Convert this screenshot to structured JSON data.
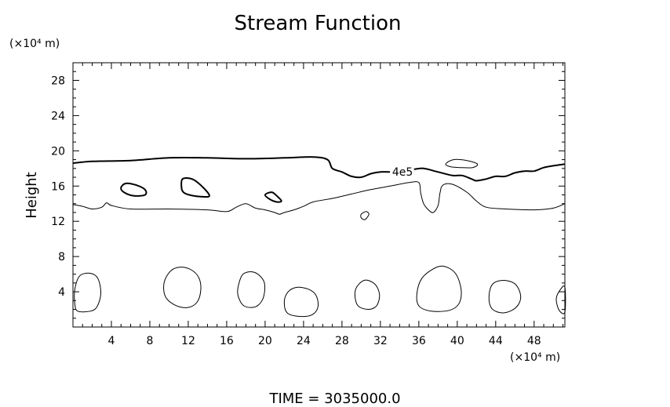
{
  "chart_data": {
    "type": "contour",
    "title": "Stream Function",
    "ylabel": "Height",
    "y_unit": "(×10⁴ m)",
    "x_unit": "(×10⁴ m)",
    "xlim": [
      0,
      51.2
    ],
    "ylim": [
      0,
      30
    ],
    "x_ticks": [
      4,
      8,
      12,
      16,
      20,
      24,
      28,
      32,
      36,
      40,
      44,
      48
    ],
    "y_ticks": [
      4,
      8,
      12,
      16,
      20,
      24,
      28
    ],
    "contour_label": "4e5",
    "footer": "TIME  =  3035000.0",
    "contours": [
      {
        "name": "upper",
        "width": 2,
        "closed": false,
        "points": [
          [
            0,
            18.6
          ],
          [
            2,
            18.8
          ],
          [
            6,
            18.9
          ],
          [
            10,
            19.2
          ],
          [
            14,
            19.2
          ],
          [
            18,
            19.1
          ],
          [
            22,
            19.2
          ],
          [
            25,
            19.3
          ],
          [
            26.5,
            19.0
          ],
          [
            27,
            18.0
          ],
          [
            28,
            17.6
          ],
          [
            29,
            17.1
          ],
          [
            30,
            17.0
          ],
          [
            31,
            17.4
          ],
          [
            32,
            17.6
          ],
          [
            33,
            17.6
          ]
        ]
      },
      {
        "name": "upper-right",
        "width": 2,
        "closed": false,
        "points": [
          [
            35.5,
            17.9
          ],
          [
            36.5,
            18.0
          ],
          [
            38,
            17.6
          ],
          [
            39.5,
            17.2
          ],
          [
            40.5,
            17.2
          ],
          [
            41.5,
            16.8
          ],
          [
            42,
            16.6
          ],
          [
            43,
            16.8
          ],
          [
            44,
            17.1
          ],
          [
            45,
            17.1
          ],
          [
            46,
            17.5
          ],
          [
            47,
            17.7
          ],
          [
            48,
            17.7
          ],
          [
            49,
            18.1
          ],
          [
            50,
            18.3
          ],
          [
            51.2,
            18.5
          ]
        ]
      },
      {
        "name": "lower",
        "width": 1,
        "closed": false,
        "points": [
          [
            0,
            13.9
          ],
          [
            1,
            13.7
          ],
          [
            2,
            13.4
          ],
          [
            3,
            13.6
          ],
          [
            3.5,
            14.1
          ],
          [
            4,
            13.8
          ],
          [
            6,
            13.4
          ],
          [
            10,
            13.4
          ],
          [
            14,
            13.3
          ],
          [
            16,
            13.1
          ],
          [
            17,
            13.6
          ],
          [
            18,
            14.0
          ],
          [
            19,
            13.5
          ],
          [
            20,
            13.3
          ],
          [
            21,
            13.0
          ],
          [
            21.5,
            12.8
          ],
          [
            22,
            13.0
          ],
          [
            23,
            13.3
          ],
          [
            24,
            13.7
          ],
          [
            25,
            14.2
          ],
          [
            27,
            14.6
          ],
          [
            29,
            15.1
          ],
          [
            31,
            15.6
          ],
          [
            33,
            16.0
          ],
          [
            35,
            16.4
          ],
          [
            36,
            16.4
          ],
          [
            36.2,
            15.2
          ],
          [
            36.5,
            14.0
          ],
          [
            37,
            13.3
          ],
          [
            37.5,
            13.0
          ],
          [
            38,
            13.8
          ],
          [
            38.2,
            15.2
          ],
          [
            38.5,
            16.1
          ],
          [
            39.5,
            16.2
          ],
          [
            41,
            15.3
          ],
          [
            42,
            14.3
          ],
          [
            43,
            13.6
          ],
          [
            45,
            13.4
          ],
          [
            48,
            13.3
          ],
          [
            50,
            13.5
          ],
          [
            51.2,
            14.0
          ]
        ]
      },
      {
        "name": "cell-x6",
        "width": 2,
        "closed": true,
        "points": [
          [
            5,
            15.8
          ],
          [
            5.5,
            16.3
          ],
          [
            6.6,
            16.1
          ],
          [
            7.5,
            15.6
          ],
          [
            7.5,
            15.0
          ],
          [
            6.3,
            14.9
          ],
          [
            5.3,
            15.3
          ]
        ]
      },
      {
        "name": "cell-x12",
        "width": 2,
        "closed": true,
        "points": [
          [
            11.3,
            15.8
          ],
          [
            11.4,
            16.8
          ],
          [
            12.4,
            16.8
          ],
          [
            13.4,
            16.0
          ],
          [
            14.2,
            14.9
          ],
          [
            13.3,
            14.8
          ],
          [
            12.1,
            15.0
          ],
          [
            11.5,
            15.3
          ]
        ]
      },
      {
        "name": "cell-x20",
        "width": 2,
        "closed": true,
        "points": [
          [
            20,
            15.0
          ],
          [
            20.7,
            15.3
          ],
          [
            21.3,
            14.8
          ],
          [
            21.7,
            14.3
          ],
          [
            21.2,
            14.2
          ],
          [
            20.5,
            14.5
          ]
        ]
      },
      {
        "name": "cell-x40",
        "width": 1,
        "closed": true,
        "points": [
          [
            38.8,
            18.5
          ],
          [
            39.6,
            19.0
          ],
          [
            41,
            18.9
          ],
          [
            42.1,
            18.5
          ],
          [
            41.6,
            18.1
          ],
          [
            40.3,
            18.1
          ],
          [
            39.3,
            18.2
          ]
        ]
      },
      {
        "name": "dot-x30",
        "width": 1,
        "closed": true,
        "points": [
          [
            30,
            12.8
          ],
          [
            30.5,
            13.1
          ],
          [
            30.8,
            12.8
          ],
          [
            30.4,
            12.2
          ],
          [
            30,
            12.4
          ]
        ]
      },
      {
        "name": "bubble-1",
        "width": 1,
        "closed": true,
        "points": [
          [
            0.2,
            4.3
          ],
          [
            0.7,
            5.8
          ],
          [
            1.8,
            6.1
          ],
          [
            2.6,
            5.5
          ],
          [
            2.9,
            3.8
          ],
          [
            2.5,
            2.3
          ],
          [
            1.8,
            1.8
          ],
          [
            0.5,
            1.8
          ],
          [
            0.2,
            2.6
          ]
        ]
      },
      {
        "name": "bubble-2",
        "width": 1,
        "closed": true,
        "points": [
          [
            9.5,
            5.1
          ],
          [
            10.2,
            6.4
          ],
          [
            11.2,
            6.8
          ],
          [
            12.3,
            6.5
          ],
          [
            13.1,
            5.6
          ],
          [
            13.3,
            4.2
          ],
          [
            12.9,
            2.8
          ],
          [
            11.9,
            2.2
          ],
          [
            10.6,
            2.5
          ],
          [
            9.6,
            3.5
          ]
        ]
      },
      {
        "name": "bubble-3",
        "width": 1,
        "closed": true,
        "points": [
          [
            17.2,
            4.6
          ],
          [
            17.7,
            6.0
          ],
          [
            18.9,
            6.2
          ],
          [
            19.9,
            5.1
          ],
          [
            19.8,
            3.3
          ],
          [
            19.0,
            2.3
          ],
          [
            17.8,
            2.4
          ],
          [
            17.2,
            3.5
          ]
        ]
      },
      {
        "name": "bubble-4",
        "width": 1,
        "closed": true,
        "points": [
          [
            22,
            2.9
          ],
          [
            22.4,
            4.0
          ],
          [
            23.3,
            4.5
          ],
          [
            24.5,
            4.3
          ],
          [
            25.3,
            3.6
          ],
          [
            25.5,
            2.3
          ],
          [
            24.9,
            1.4
          ],
          [
            23.6,
            1.2
          ],
          [
            22.3,
            1.6
          ]
        ]
      },
      {
        "name": "bubble-5",
        "width": 1,
        "closed": true,
        "points": [
          [
            29.4,
            4.2
          ],
          [
            30.3,
            5.3
          ],
          [
            31.4,
            4.9
          ],
          [
            31.9,
            3.7
          ],
          [
            31.6,
            2.4
          ],
          [
            30.7,
            2.0
          ],
          [
            29.6,
            2.5
          ]
        ]
      },
      {
        "name": "bubble-6",
        "width": 1,
        "closed": true,
        "points": [
          [
            35.8,
            3.8
          ],
          [
            36.3,
            5.5
          ],
          [
            37.5,
            6.6
          ],
          [
            38.6,
            6.9
          ],
          [
            39.8,
            6.1
          ],
          [
            40.4,
            4.3
          ],
          [
            40.2,
            2.7
          ],
          [
            39.2,
            1.9
          ],
          [
            37.3,
            1.8
          ],
          [
            36.0,
            2.4
          ]
        ]
      },
      {
        "name": "bubble-7",
        "width": 1,
        "closed": true,
        "points": [
          [
            43.3,
            3.5
          ],
          [
            43.7,
            4.9
          ],
          [
            44.9,
            5.3
          ],
          [
            46.1,
            4.8
          ],
          [
            46.6,
            3.4
          ],
          [
            46.1,
            2.2
          ],
          [
            44.8,
            1.6
          ],
          [
            43.6,
            2.1
          ]
        ]
      },
      {
        "name": "bubble-8",
        "width": 1,
        "closed": true,
        "points": [
          [
            51.2,
            4.5
          ],
          [
            50.7,
            4.2
          ],
          [
            50.3,
            3.2
          ],
          [
            50.6,
            1.9
          ],
          [
            51.2,
            1.7
          ]
        ]
      }
    ]
  }
}
